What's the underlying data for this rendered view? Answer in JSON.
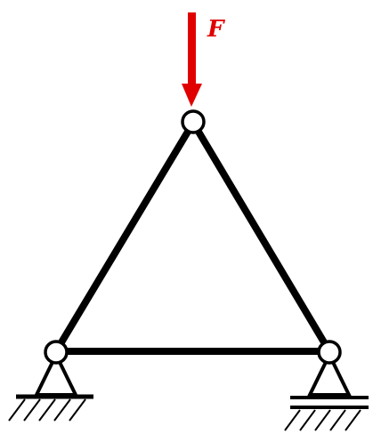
{
  "diagram": {
    "force_label": "F",
    "colors": {
      "force": "#e00000",
      "member": "#000000",
      "joint_fill": "#ffffff",
      "background": "#ffffff"
    },
    "elements": {
      "members": [
        "left-member",
        "right-member",
        "bottom-member"
      ],
      "joints": [
        "top-joint",
        "left-joint",
        "right-joint"
      ],
      "supports": [
        "pin-support",
        "roller-support"
      ],
      "load": "force-arrow"
    }
  }
}
